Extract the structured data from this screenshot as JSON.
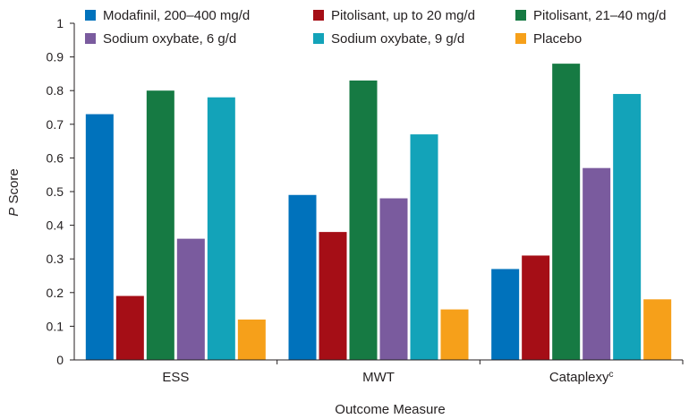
{
  "chart_data": {
    "type": "bar",
    "title": "",
    "xlabel": "Outcome Measure",
    "ylabel_italic": "P",
    "ylabel_rest": " Score",
    "ylim": [
      0,
      1
    ],
    "yticks": [
      0,
      0.1,
      0.2,
      0.3,
      0.4,
      0.5,
      0.6,
      0.7,
      0.8,
      0.9,
      1
    ],
    "ytick_labels": [
      "0",
      "0.1",
      "0.2",
      "0.3",
      "0.4",
      "0.5",
      "0.6",
      "0.7",
      "0.8",
      "0.9",
      "1"
    ],
    "grid": false,
    "legend_position": "top",
    "categories": [
      {
        "label": "ESS",
        "sup": ""
      },
      {
        "label": "MWT",
        "sup": ""
      },
      {
        "label": "Cataplexy",
        "sup": "c"
      }
    ],
    "series": [
      {
        "name": "Modafinil, 200–400 mg/d",
        "color": "#0072bc",
        "values": [
          0.73,
          0.49,
          0.27
        ]
      },
      {
        "name": "Pitolisant, up to 20 mg/d",
        "color": "#a50e16",
        "values": [
          0.19,
          0.38,
          0.31
        ]
      },
      {
        "name": "Pitolisant, 21–40 mg/d",
        "color": "#167a43",
        "values": [
          0.8,
          0.83,
          0.88
        ]
      },
      {
        "name": "Sodium oxybate, 6 g/d",
        "color": "#7a5b9e",
        "values": [
          0.36,
          0.48,
          0.57
        ]
      },
      {
        "name": "Sodium oxybate, 9 g/d",
        "color": "#13a3b9",
        "values": [
          0.78,
          0.67,
          0.79
        ]
      },
      {
        "name": "Placebo",
        "color": "#f6a01a",
        "values": [
          0.12,
          0.15,
          0.18
        ]
      }
    ]
  }
}
